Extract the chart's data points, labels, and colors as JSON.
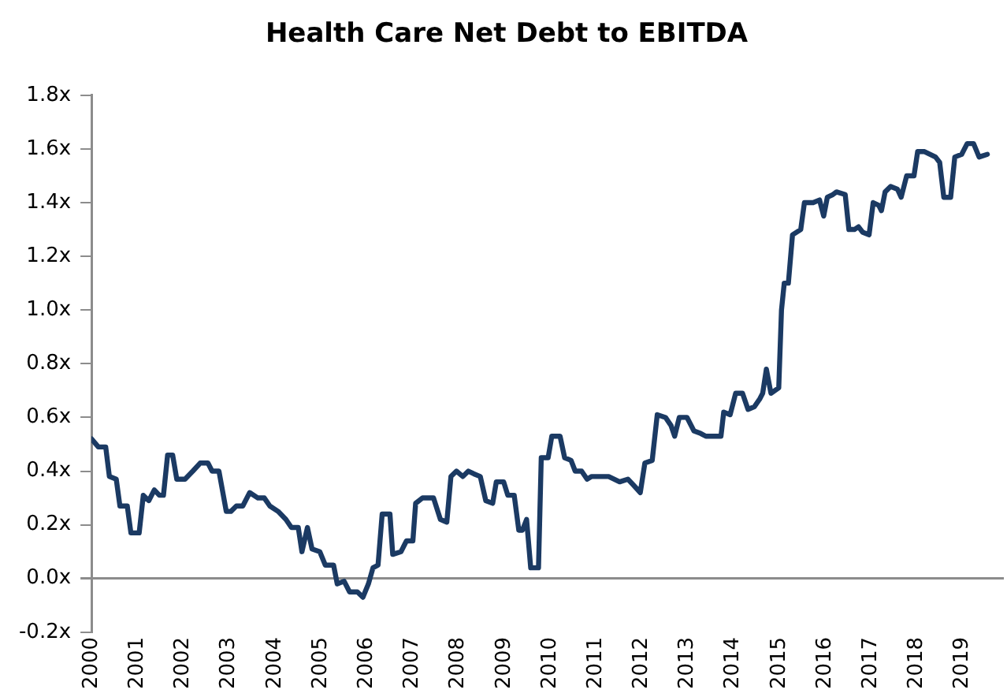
{
  "chart_data": {
    "type": "line",
    "title": "Health Care Net Debt to EBITDA",
    "x": [
      2000,
      2000.15,
      2000.31,
      2000.39,
      2000.54,
      2000.62,
      2000.78,
      2000.86,
      2001.04,
      2001.13,
      2001.25,
      2001.37,
      2001.48,
      2001.57,
      2001.66,
      2001.77,
      2001.86,
      2002.04,
      2002.21,
      2002.37,
      2002.54,
      2002.63,
      2002.78,
      2002.94,
      2003.04,
      2003.16,
      2003.3,
      2003.45,
      2003.63,
      2003.77,
      2003.89,
      2004.07,
      2004.24,
      2004.36,
      2004.51,
      2004.59,
      2004.71,
      2004.81,
      2004.98,
      2005.1,
      2005.28,
      2005.36,
      2005.51,
      2005.63,
      2005.8,
      2005.92,
      2006.04,
      2006.14,
      2006.25,
      2006.34,
      2006.51,
      2006.57,
      2006.75,
      2006.87,
      2007.01,
      2007.07,
      2007.22,
      2007.46,
      2007.61,
      2007.75,
      2007.84,
      2007.96,
      2008.1,
      2008.22,
      2008.34,
      2008.48,
      2008.6,
      2008.75,
      2008.83,
      2008.99,
      2009.08,
      2009.22,
      2009.32,
      2009.4,
      2009.49,
      2009.58,
      2009.75,
      2009.81,
      2009.96,
      2010.04,
      2010.22,
      2010.32,
      2010.46,
      2010.55,
      2010.69,
      2010.81,
      2010.91,
      2011.28,
      2011.52,
      2011.7,
      2011.81,
      2011.97,
      2012.07,
      2012.23,
      2012.34,
      2012.52,
      2012.64,
      2012.72,
      2012.82,
      2012.99,
      2013.14,
      2013.29,
      2013.4,
      2013.73,
      2013.79,
      2013.93,
      2014.05,
      2014.2,
      2014.32,
      2014.46,
      2014.58,
      2014.64,
      2014.72,
      2014.82,
      2014.99,
      2015.05,
      2015.11,
      2015.2,
      2015.29,
      2015.47,
      2015.55,
      2015.74,
      2015.88,
      2015.97,
      2016.05,
      2016.17,
      2016.25,
      2016.44,
      2016.52,
      2016.64,
      2016.73,
      2016.82,
      2016.96,
      2017.05,
      2017.17,
      2017.23,
      2017.31,
      2017.43,
      2017.58,
      2017.66,
      2017.78,
      2017.94,
      2018.02,
      2018.17,
      2018.41,
      2018.5,
      2018.59,
      2018.74,
      2018.83,
      2018.98,
      2019.1,
      2019.24,
      2019.36,
      2019.54
    ],
    "series": [
      {
        "color": "#1b3a63",
        "values": [
          0.52,
          0.49,
          0.49,
          0.38,
          0.37,
          0.27,
          0.27,
          0.17,
          0.17,
          0.31,
          0.29,
          0.33,
          0.31,
          0.31,
          0.46,
          0.46,
          0.37,
          0.37,
          0.4,
          0.43,
          0.43,
          0.4,
          0.4,
          0.25,
          0.25,
          0.27,
          0.27,
          0.32,
          0.3,
          0.3,
          0.27,
          0.25,
          0.22,
          0.19,
          0.19,
          0.1,
          0.19,
          0.11,
          0.1,
          0.05,
          0.05,
          -0.02,
          -0.01,
          -0.05,
          -0.05,
          -0.07,
          -0.02,
          0.04,
          0.05,
          0.24,
          0.24,
          0.09,
          0.1,
          0.14,
          0.14,
          0.28,
          0.3,
          0.3,
          0.22,
          0.21,
          0.38,
          0.4,
          0.38,
          0.4,
          0.39,
          0.38,
          0.29,
          0.28,
          0.36,
          0.36,
          0.31,
          0.31,
          0.18,
          0.18,
          0.22,
          0.04,
          0.04,
          0.45,
          0.45,
          0.53,
          0.53,
          0.45,
          0.44,
          0.4,
          0.4,
          0.37,
          0.38,
          0.38,
          0.36,
          0.37,
          0.35,
          0.32,
          0.43,
          0.44,
          0.61,
          0.6,
          0.57,
          0.53,
          0.6,
          0.6,
          0.55,
          0.54,
          0.53,
          0.53,
          0.62,
          0.61,
          0.69,
          0.69,
          0.63,
          0.64,
          0.67,
          0.69,
          0.78,
          0.69,
          0.71,
          1.0,
          1.1,
          1.1,
          1.28,
          1.3,
          1.4,
          1.4,
          1.41,
          1.35,
          1.42,
          1.43,
          1.44,
          1.43,
          1.3,
          1.3,
          1.31,
          1.29,
          1.28,
          1.4,
          1.39,
          1.37,
          1.44,
          1.46,
          1.45,
          1.42,
          1.5,
          1.5,
          1.59,
          1.59,
          1.57,
          1.55,
          1.42,
          1.42,
          1.57,
          1.58,
          1.62,
          1.62,
          1.57,
          1.58
        ]
      }
    ],
    "xlim": [
      2000,
      2019.9
    ],
    "xticks": [
      2000,
      2001,
      2002,
      2003,
      2004,
      2005,
      2006,
      2007,
      2008,
      2009,
      2010,
      2011,
      2012,
      2013,
      2014,
      2015,
      2016,
      2017,
      2018,
      2019
    ],
    "ylim": [
      -0.2,
      1.8
    ],
    "yticks": [
      {
        "value": -0.2,
        "label": "-0.2x"
      },
      {
        "value": 0,
        "label": "0.0x"
      },
      {
        "value": 0.2,
        "label": "0.2x"
      },
      {
        "value": 0.4,
        "label": "0.4x"
      },
      {
        "value": 0.6,
        "label": "0.6x"
      },
      {
        "value": 0.8,
        "label": "0.8x"
      },
      {
        "value": 1.0,
        "label": "1.0x"
      },
      {
        "value": 1.2,
        "label": "1.2x"
      },
      {
        "value": 1.4,
        "label": "1.4x"
      },
      {
        "value": 1.6,
        "label": "1.6x"
      },
      {
        "value": 1.8,
        "label": "1.8x"
      }
    ],
    "marker": "none",
    "line_style": "solid"
  }
}
